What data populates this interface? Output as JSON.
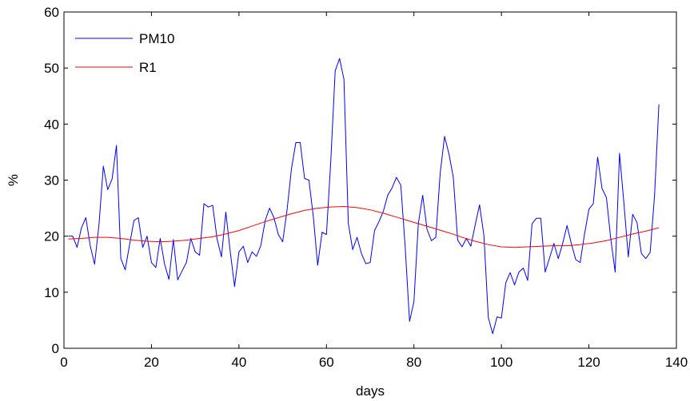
{
  "chart_data": {
    "type": "line",
    "xlabel": "days",
    "ylabel": "%",
    "xlim": [
      0,
      140
    ],
    "ylim": [
      0,
      60
    ],
    "xticks": [
      0,
      20,
      40,
      60,
      80,
      100,
      120,
      140
    ],
    "yticks": [
      0,
      10,
      20,
      30,
      40,
      50,
      60
    ],
    "grid": false,
    "legend_position": "top-left",
    "series": [
      {
        "name": "PM10",
        "color": "#0000ff",
        "x": [
          1,
          2,
          3,
          4,
          5,
          6,
          7,
          8,
          9,
          10,
          11,
          12,
          13,
          14,
          15,
          16,
          17,
          18,
          19,
          20,
          21,
          22,
          23,
          24,
          25,
          26,
          27,
          28,
          29,
          30,
          31,
          32,
          33,
          34,
          35,
          36,
          37,
          38,
          39,
          40,
          41,
          42,
          43,
          44,
          45,
          46,
          47,
          48,
          49,
          50,
          51,
          52,
          53,
          54,
          55,
          56,
          57,
          58,
          59,
          60,
          61,
          62,
          63,
          64,
          65,
          66,
          67,
          68,
          69,
          70,
          71,
          72,
          73,
          74,
          75,
          76,
          77,
          78,
          79,
          80,
          81,
          82,
          83,
          84,
          85,
          86,
          87,
          88,
          89,
          90,
          91,
          92,
          93,
          94,
          95,
          96,
          97,
          98,
          99,
          100,
          101,
          102,
          103,
          104,
          105,
          106,
          107,
          108,
          109,
          110,
          111,
          112,
          113,
          114,
          115,
          116,
          117,
          118,
          119,
          120,
          121,
          122,
          123,
          124,
          125,
          126,
          127,
          128,
          129,
          130,
          131,
          132,
          133,
          134,
          135,
          136
        ],
        "values": [
          20,
          20,
          18,
          21.5,
          23.3,
          18.3,
          15,
          22,
          32.5,
          28.3,
          30.2,
          36.2,
          16,
          14,
          18.5,
          22.8,
          23.3,
          18,
          20,
          15.3,
          14.4,
          19.6,
          15,
          12.3,
          19.4,
          12.2,
          13.8,
          15.3,
          19.6,
          17.2,
          16.6,
          25.8,
          25.2,
          25.5,
          19.5,
          16.3,
          24.3,
          17.3,
          11,
          17.2,
          18.2,
          15.3,
          17.2,
          16.4,
          18.3,
          22.8,
          25,
          23.3,
          20.3,
          19,
          24.7,
          32,
          36.7,
          36.7,
          30.3,
          30,
          23.5,
          14.8,
          20.7,
          20.3,
          33.5,
          49.5,
          51.7,
          48,
          22.3,
          17.6,
          19.8,
          16.9,
          15.1,
          15.3,
          21,
          22.6,
          24.4,
          27.3,
          28.6,
          30.5,
          29.1,
          18.1,
          4.8,
          8.3,
          22.2,
          27.3,
          21.2,
          19.2,
          19.8,
          31.2,
          37.8,
          34.7,
          30.5,
          19.3,
          18.1,
          19.6,
          18.2,
          22,
          25.6,
          20.1,
          5.5,
          2.6,
          5.6,
          5.4,
          11.7,
          13.5,
          11.3,
          13.6,
          14.3,
          12.1,
          22.2,
          23.2,
          23.2,
          13.6,
          16.1,
          18.7,
          16,
          18.7,
          21.9,
          18.6,
          15.8,
          15.3,
          20.4,
          24.8,
          25.8,
          34.1,
          28.5,
          26.9,
          19.5,
          13.6,
          34.8,
          25.9,
          16.3,
          23.9,
          22.4,
          16.9,
          16,
          17.1,
          27.2,
          43.5
        ]
      },
      {
        "name": "R1",
        "color": "#ff0000",
        "x": [
          1,
          4,
          7,
          10,
          13,
          16,
          19,
          22,
          25,
          28,
          31,
          34,
          37,
          40,
          43,
          46,
          49,
          52,
          55,
          58,
          61,
          64,
          67,
          70,
          73,
          76,
          79,
          82,
          85,
          88,
          91,
          94,
          97,
          100,
          103,
          106,
          109,
          112,
          115,
          118,
          121,
          124,
          127,
          130,
          133,
          136
        ],
        "values": [
          19.5,
          19.6,
          19.8,
          19.8,
          19.6,
          19.3,
          19.1,
          19.0,
          19.1,
          19.3,
          19.6,
          19.9,
          20.4,
          21.0,
          21.8,
          22.6,
          23.3,
          24.0,
          24.6,
          25.0,
          25.2,
          25.3,
          25.1,
          24.7,
          24.1,
          23.4,
          22.7,
          22.0,
          21.3,
          20.6,
          19.8,
          19.1,
          18.5,
          18.1,
          18.0,
          18.1,
          18.2,
          18.3,
          18.3,
          18.5,
          18.8,
          19.2,
          19.8,
          20.4,
          20.9,
          21.5
        ]
      }
    ]
  }
}
